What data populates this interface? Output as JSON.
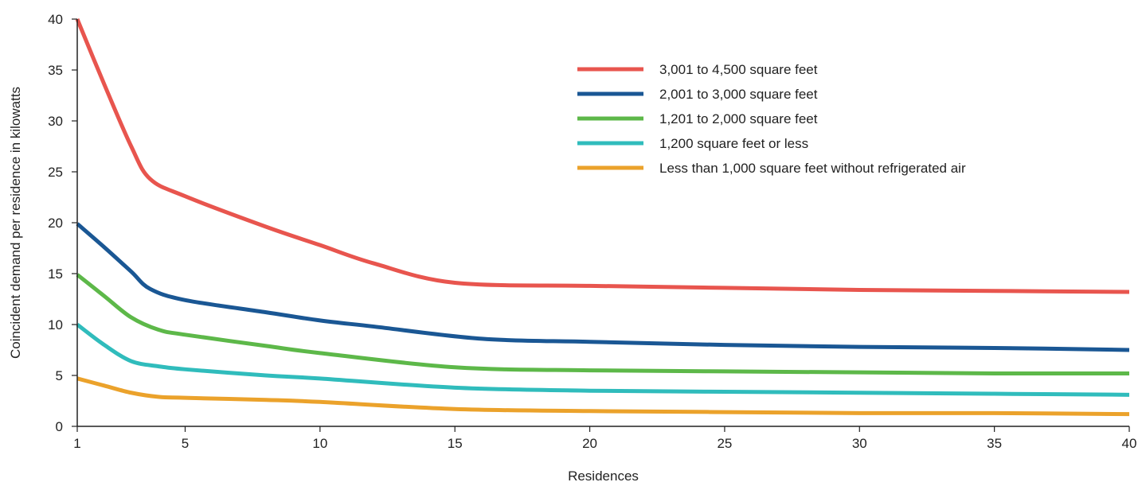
{
  "chart_data": {
    "type": "line",
    "title": "",
    "xlabel": "Residences",
    "ylabel": "Coincident demand per residence in kilowatts",
    "xlim": [
      1,
      40
    ],
    "ylim": [
      0,
      40
    ],
    "x_ticks": [
      1,
      5,
      10,
      15,
      20,
      25,
      30,
      35,
      40
    ],
    "y_ticks": [
      0,
      5,
      10,
      15,
      20,
      25,
      30,
      35,
      40
    ],
    "grid": false,
    "legend_position": "top-right",
    "series": [
      {
        "name": "3,001 to 4,500 square feet",
        "color": "#e8554e",
        "points": [
          [
            1,
            40
          ],
          [
            2,
            33.6
          ],
          [
            3,
            27.5
          ],
          [
            3.7,
            24.3
          ],
          [
            5,
            22.6
          ],
          [
            8,
            19.6
          ],
          [
            10,
            17.8
          ],
          [
            12,
            16.0
          ],
          [
            15,
            14.1
          ],
          [
            20,
            13.8
          ],
          [
            25,
            13.6
          ],
          [
            30,
            13.4
          ],
          [
            35,
            13.3
          ],
          [
            40,
            13.2
          ]
        ]
      },
      {
        "name": "2,001 to 3,000 square feet",
        "color": "#1a5794",
        "points": [
          [
            1,
            19.9
          ],
          [
            2,
            17.6
          ],
          [
            3,
            15.2
          ],
          [
            3.7,
            13.5
          ],
          [
            5,
            12.4
          ],
          [
            8,
            11.2
          ],
          [
            10,
            10.4
          ],
          [
            12,
            9.8
          ],
          [
            16,
            8.6
          ],
          [
            20,
            8.3
          ],
          [
            25,
            8.0
          ],
          [
            30,
            7.8
          ],
          [
            35,
            7.7
          ],
          [
            40,
            7.5
          ]
        ]
      },
      {
        "name": "1,201 to 2,000 square feet",
        "color": "#5db849",
        "points": [
          [
            1,
            14.9
          ],
          [
            2,
            12.8
          ],
          [
            3,
            10.7
          ],
          [
            4,
            9.5
          ],
          [
            5,
            9.0
          ],
          [
            8,
            7.9
          ],
          [
            10,
            7.2
          ],
          [
            15,
            5.8
          ],
          [
            20,
            5.5
          ],
          [
            25,
            5.4
          ],
          [
            30,
            5.3
          ],
          [
            35,
            5.2
          ],
          [
            40,
            5.2
          ]
        ]
      },
      {
        "name": "1,200 square feet or less",
        "color": "#30bcbc",
        "points": [
          [
            1,
            10.0
          ],
          [
            2,
            8.0
          ],
          [
            3,
            6.4
          ],
          [
            4,
            5.9
          ],
          [
            5,
            5.6
          ],
          [
            8,
            5.0
          ],
          [
            10,
            4.7
          ],
          [
            15,
            3.8
          ],
          [
            20,
            3.5
          ],
          [
            25,
            3.4
          ],
          [
            30,
            3.3
          ],
          [
            35,
            3.2
          ],
          [
            40,
            3.1
          ]
        ]
      },
      {
        "name": "Less than 1,000 square feet without refrigerated air",
        "color": "#eba22b",
        "points": [
          [
            1,
            4.7
          ],
          [
            2,
            4.0
          ],
          [
            3,
            3.3
          ],
          [
            4,
            2.9
          ],
          [
            5,
            2.8
          ],
          [
            8,
            2.6
          ],
          [
            10,
            2.4
          ],
          [
            15,
            1.7
          ],
          [
            20,
            1.5
          ],
          [
            25,
            1.4
          ],
          [
            30,
            1.3
          ],
          [
            35,
            1.3
          ],
          [
            40,
            1.2
          ]
        ]
      }
    ]
  }
}
